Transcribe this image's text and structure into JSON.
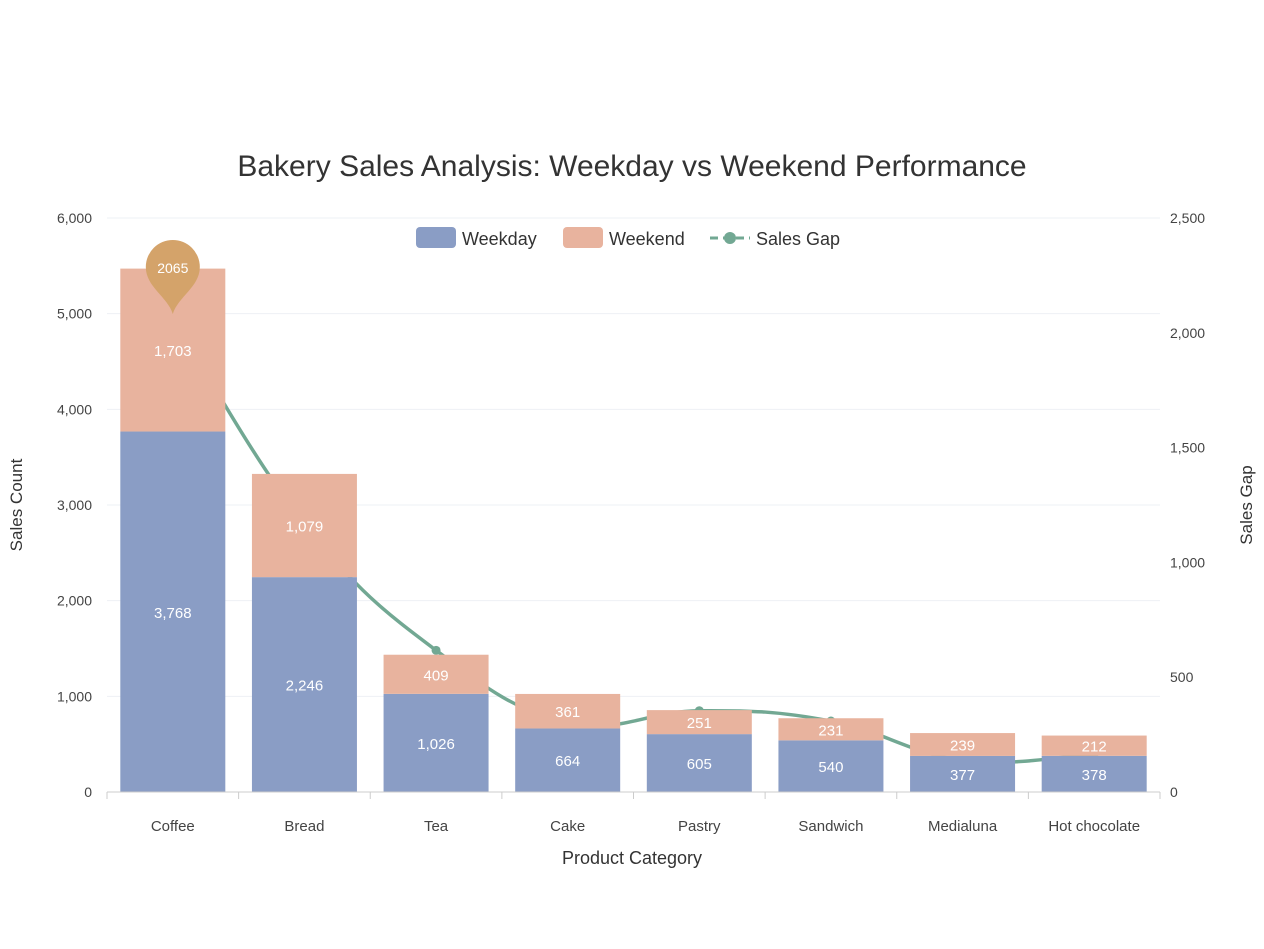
{
  "chart_data": {
    "type": "bar",
    "stacked": true,
    "title": "Bakery Sales Analysis: Weekday vs Weekend Performance",
    "xlabel": "Product Category",
    "ylabel": "Sales Count",
    "y2label": "Sales Gap",
    "ylim": [
      0,
      6000
    ],
    "y2lim": [
      0,
      2500
    ],
    "yticks": [
      "0",
      "1,000",
      "2,000",
      "3,000",
      "4,000",
      "5,000",
      "6,000"
    ],
    "y2ticks": [
      "0",
      "500",
      "1,000",
      "1,500",
      "2,000",
      "2,500"
    ],
    "grid": true,
    "legend_position": "top-center",
    "categories": [
      "Coffee",
      "Bread",
      "Tea",
      "Cake",
      "Pastry",
      "Sandwich",
      "Medialuna",
      "Hot chocolate"
    ],
    "series": [
      {
        "name": "Weekday",
        "type": "bar",
        "color": "#8a9dc5",
        "values": [
          3768,
          2246,
          1026,
          664,
          605,
          540,
          377,
          378
        ],
        "labels": [
          "3,768",
          "2,246",
          "1,026",
          "664",
          "605",
          "540",
          "377",
          "378"
        ]
      },
      {
        "name": "Weekend",
        "type": "bar",
        "color": "#e8b39e",
        "values": [
          1703,
          1079,
          409,
          361,
          251,
          231,
          239,
          212
        ],
        "labels": [
          "1,703",
          "1,079",
          "409",
          "361",
          "251",
          "231",
          "239",
          "212"
        ]
      },
      {
        "name": "Sales Gap",
        "type": "line",
        "axis": "right",
        "smooth": true,
        "color": "#72a893",
        "values": [
          2065,
          1167,
          617,
          303,
          354,
          309,
          138,
          166
        ]
      }
    ],
    "annotation": {
      "category": "Coffee",
      "text": "2065",
      "color": "#d4a36a"
    }
  }
}
